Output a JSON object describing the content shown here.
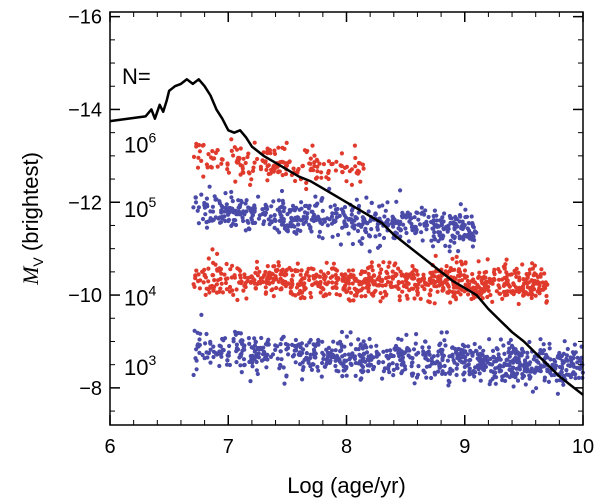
{
  "chart_data": {
    "type": "scatter",
    "title": "",
    "xlabel": "Log (age/yr)",
    "ylabel_main": "M",
    "ylabel_sub": "V",
    "ylabel_rest": " (brightest)",
    "xlim": [
      6,
      10
    ],
    "ylim": [
      -7.2,
      -16.1
    ],
    "y_inverted": true,
    "x_ticks": [
      6,
      7,
      8,
      9,
      10
    ],
    "x_tick_labels": [
      "6",
      "7",
      "8",
      "9",
      "10"
    ],
    "y_ticks": [
      -8,
      -10,
      -12,
      -14,
      -16
    ],
    "y_tick_labels": [
      "−8",
      "−10",
      "−12",
      "−14",
      "−16"
    ],
    "grid": false,
    "annotation_n": "N=",
    "series": [
      {
        "label_base": "10",
        "label_exp": "3",
        "color": "#4a4aa8",
        "x_range": [
          6.7,
          10.0
        ],
        "y_center_start": -8.85,
        "y_center_end": -8.45,
        "y_spread": 0.35,
        "n_points": 850
      },
      {
        "label_base": "10",
        "label_exp": "4",
        "color": "#e03a2c",
        "x_range": [
          6.7,
          9.7
        ],
        "y_center_start": -10.35,
        "y_center_end": -10.25,
        "y_spread": 0.32,
        "n_points": 780
      },
      {
        "label_base": "10",
        "label_exp": "5",
        "color": "#4a4aa8",
        "x_range": [
          6.7,
          9.1
        ],
        "y_center_start": -11.85,
        "y_center_end": -11.45,
        "y_spread": 0.35,
        "n_points": 560
      },
      {
        "label_base": "10",
        "label_exp": "6",
        "color": "#e03a2c",
        "x_range": [
          6.7,
          8.15
        ],
        "y_center_start": -12.9,
        "y_center_end": -12.7,
        "y_spread": 0.32,
        "n_points": 180
      }
    ],
    "line": {
      "color": "#000000",
      "x": [
        6.0,
        6.15,
        6.3,
        6.35,
        6.38,
        6.42,
        6.45,
        6.48,
        6.5,
        6.55,
        6.6,
        6.65,
        6.7,
        6.75,
        6.8,
        6.85,
        6.9,
        6.95,
        7.0,
        7.05,
        7.1,
        7.15,
        7.2,
        7.3,
        7.4,
        7.5,
        7.6,
        7.7,
        7.8,
        7.9,
        8.0,
        8.1,
        8.2,
        8.3,
        8.4,
        8.5,
        8.6,
        8.7,
        8.8,
        8.9,
        9.0,
        9.1,
        9.2,
        9.3,
        9.4,
        9.5,
        9.6,
        9.7,
        9.8,
        9.9,
        10.0
      ],
      "y": [
        -13.75,
        -13.8,
        -13.85,
        -14.0,
        -13.8,
        -14.1,
        -13.95,
        -14.2,
        -14.4,
        -14.5,
        -14.55,
        -14.65,
        -14.55,
        -14.65,
        -14.5,
        -14.3,
        -14.0,
        -13.8,
        -13.55,
        -13.5,
        -13.55,
        -13.4,
        -13.2,
        -13.0,
        -12.85,
        -12.7,
        -12.55,
        -12.45,
        -12.3,
        -12.15,
        -12.0,
        -11.85,
        -11.7,
        -11.55,
        -11.3,
        -11.1,
        -10.9,
        -10.7,
        -10.5,
        -10.3,
        -10.15,
        -10.0,
        -9.7,
        -9.45,
        -9.2,
        -9.0,
        -8.75,
        -8.5,
        -8.25,
        -8.05,
        -7.85
      ]
    }
  }
}
